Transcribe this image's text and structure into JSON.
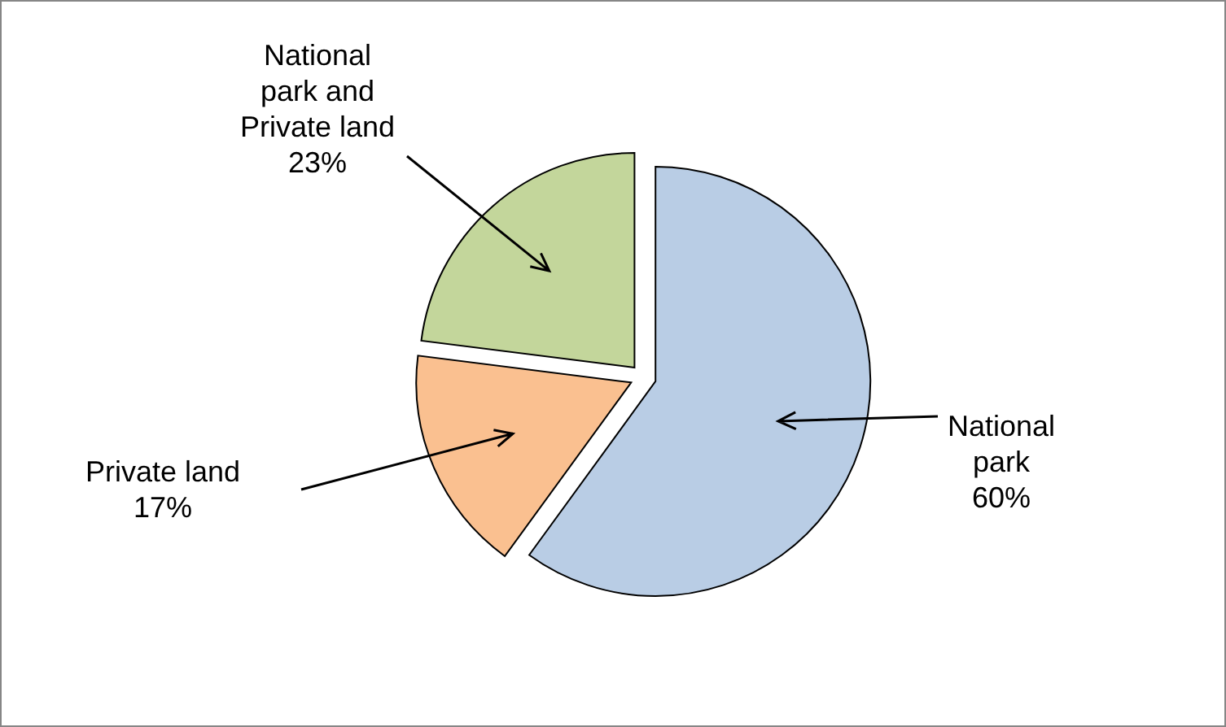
{
  "chart_data": {
    "type": "pie",
    "categories": [
      "National park",
      "Private land",
      "National park  and Private land"
    ],
    "values": [
      60,
      17,
      23
    ],
    "colors": [
      "#b9cde5",
      "#fac090",
      "#c3d69b"
    ],
    "value_labels": [
      "60%",
      "17%",
      "23%"
    ]
  }
}
